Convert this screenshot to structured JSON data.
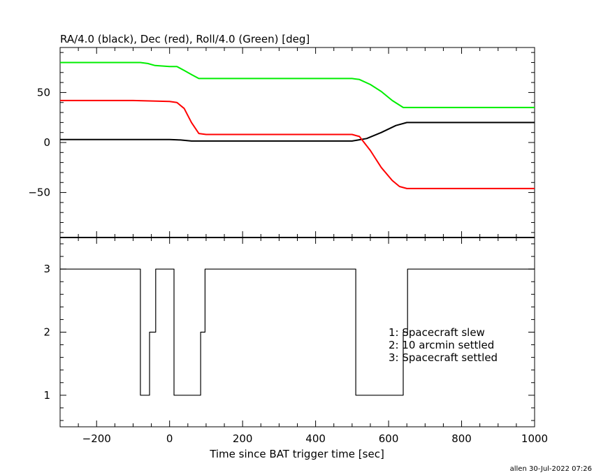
{
  "chart_data": [
    {
      "type": "line",
      "title": "RA/4.0 (black), Dec (red), Roll/4.0 (Green) [deg]",
      "xlim": [
        -300,
        1000
      ],
      "ylim": [
        -95,
        95
      ],
      "y_ticks": [
        -50,
        0,
        50
      ],
      "grid": false,
      "series": [
        {
          "color": "#000000",
          "x": [
            -300,
            -200,
            -100,
            0,
            30,
            60,
            100,
            200,
            300,
            400,
            500,
            540,
            580,
            620,
            650,
            700,
            800,
            900,
            1000
          ],
          "y": [
            3,
            3,
            3,
            3,
            2.5,
            1.5,
            1.5,
            1.5,
            1.5,
            1.5,
            1.5,
            4,
            10,
            17,
            20,
            20,
            20,
            20,
            20
          ]
        },
        {
          "color": "#ff0000",
          "x": [
            -300,
            -200,
            -100,
            0,
            20,
            40,
            60,
            80,
            100,
            200,
            300,
            400,
            500,
            520,
            550,
            580,
            610,
            630,
            650,
            700,
            800,
            900,
            1000
          ],
          "y": [
            42,
            42,
            42,
            41,
            40,
            34,
            20,
            9,
            8,
            8,
            8,
            8,
            8,
            6,
            -8,
            -25,
            -38,
            -44,
            -46,
            -46,
            -46,
            -46,
            -46
          ]
        },
        {
          "color": "#00ee00",
          "x": [
            -300,
            -200,
            -80,
            -60,
            -40,
            0,
            20,
            40,
            60,
            80,
            100,
            200,
            300,
            400,
            500,
            520,
            550,
            580,
            610,
            640,
            700,
            800,
            900,
            1000
          ],
          "y": [
            80,
            80,
            80,
            79,
            77,
            76,
            76,
            72,
            68,
            64,
            64,
            64,
            64,
            64,
            64,
            63,
            58,
            51,
            42,
            35,
            35,
            35,
            35,
            35
          ]
        }
      ]
    },
    {
      "type": "line",
      "xlabel": "Time since BAT trigger time [sec]",
      "xlim": [
        -300,
        1000
      ],
      "ylim": [
        0.5,
        3.5
      ],
      "x_ticks": [
        -200,
        0,
        200,
        400,
        600,
        800,
        1000
      ],
      "y_ticks": [
        1,
        2,
        3
      ],
      "grid": false,
      "legend_text": [
        "1: Spacecraft slew",
        "2: 10 arcmin settled",
        "3: Spacecraft settled"
      ],
      "series": [
        {
          "color": "#000000",
          "step": true,
          "x": [
            -300,
            -80,
            -80,
            -55,
            -55,
            -38,
            -38,
            12,
            12,
            85,
            85,
            97,
            97,
            510,
            510,
            640,
            640,
            652,
            652,
            1000
          ],
          "y": [
            3,
            3,
            1,
            1,
            2,
            2,
            3,
            3,
            1,
            1,
            2,
            2,
            3,
            3,
            1,
            1,
            2,
            2,
            3,
            3
          ]
        }
      ]
    }
  ],
  "footer": "allen 30-Jul-2022 07:26"
}
